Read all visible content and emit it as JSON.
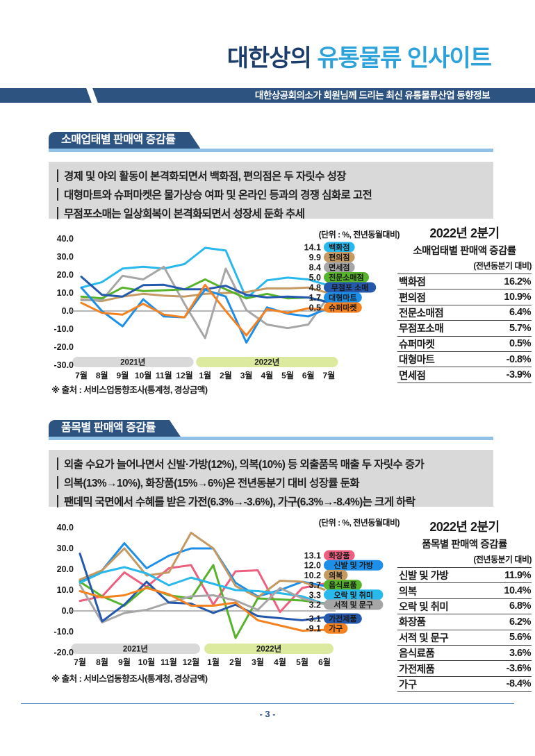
{
  "header": {
    "title_part1": "대한상의 ",
    "title_part2": "유통물류 인사이트",
    "subtitle": "대한상공회의소가 회원님께 드리는 최신 유통물류산업 동향정보"
  },
  "colors": {
    "brand_navy": "#2d5381",
    "title_navy": "#1c3c6b",
    "title_blue": "#2ba2da",
    "section_underline": "#8fc2e6",
    "summary_box_bg": "#d9d9d9",
    "band_2021": "#d9d9d9",
    "band_2022": "#dcea9f",
    "footer_blue": "#5b8ec4"
  },
  "sections": [
    {
      "tab_title": "소매업태별 판매액 증감률",
      "bullets": [
        "경제 및 야외 활동이 본격화되면서 백화점, 편의점은 두 자릿수 성장",
        "대형마트와 슈퍼마켓은 물가상승 여파 및 온라인 등과의 경쟁 심화로 고전",
        "무점포소매는 일상회복이 본격화되면서 성장세 둔화 추세"
      ],
      "unit_note": "(단위 : %, 전년동월대비)",
      "source_note": "※ 출처 : 서비스업동향조사(통계청, 경상금액)",
      "side_table": {
        "title_line1": "2022년 2분기",
        "title_line2": "소매업태별 판매액 증감률",
        "title_line3": "(전년동분기 대비)",
        "rows": [
          [
            "백화점",
            "16.2%"
          ],
          [
            "편의점",
            "10.9%"
          ],
          [
            "전문소매점",
            "6.4%"
          ],
          [
            "무점포소매",
            "5.7%"
          ],
          [
            "슈퍼마켓",
            "0.5%"
          ],
          [
            "대형마트",
            "-0.8%"
          ],
          [
            "면세점",
            "-3.9%"
          ]
        ]
      }
    },
    {
      "tab_title": "품목별 판매액 증감률",
      "bullets": [
        "외출 수요가 늘어나면서 신발·가방(12%), 의복(10%) 등 외출품목 매출 두 자릿수 증가",
        "의복(13%→10%), 화장품(15%→6%)은 전년동분기 대비 성장률 둔화",
        "팬데믹 국면에서 수혜를 받은 가전(6.3%→-3.6%), 가구(6.3%→-8.4%)는 크게 하락"
      ],
      "unit_note": "(단위 : %, 전년동월대비)",
      "source_note": "※ 출처 : 서비스업동향조사(통계청, 경상금액)",
      "side_table": {
        "title_line1": "2022년 2분기",
        "title_line2": "품목별 판매액 증감률",
        "title_line3": "(전년동분기 대비)",
        "rows": [
          [
            "신발 및 가방",
            "11.9%"
          ],
          [
            "의복",
            "10.4%"
          ],
          [
            "오락 및 취미",
            "6.8%"
          ],
          [
            "화장품",
            "6.2%"
          ],
          [
            "서적 및 문구",
            "5.6%"
          ],
          [
            "음식료품",
            "3.6%"
          ],
          [
            "가전제품",
            "-3.6%"
          ],
          [
            "가구",
            "-8.4%"
          ]
        ]
      }
    }
  ],
  "chart_data": [
    {
      "type": "line",
      "title": "소매업태별 판매액 증감률",
      "unit": "%, 전년동월대비",
      "x": [
        "7월",
        "8월",
        "9월",
        "10월",
        "11월",
        "12월",
        "1월",
        "2월",
        "3월",
        "4월",
        "5월",
        "6월",
        "7월"
      ],
      "ylim": [
        -30,
        40
      ],
      "yticks": [
        40,
        30,
        20,
        10,
        0,
        -10,
        -20,
        -30
      ],
      "grid": false,
      "legend_position": "right",
      "year_bands": [
        {
          "label": "2021년",
          "from": 0,
          "to": 5,
          "color": "#d9d9d9"
        },
        {
          "label": "2022년",
          "from": 6,
          "to": 12,
          "color": "#dcea9f"
        }
      ],
      "series": [
        {
          "name": "백화점",
          "end_label": "14.1",
          "color": "#29b8ec",
          "values": [
            13,
            16,
            23.5,
            24.5,
            23.5,
            26,
            35,
            33.5,
            7,
            17,
            18.5,
            17.5,
            14.1
          ]
        },
        {
          "name": "편의점",
          "end_label": "9.9",
          "color": "#c49a62",
          "values": [
            6.5,
            5.5,
            8,
            9.5,
            8.5,
            8,
            9.5,
            10,
            10.5,
            12.5,
            12.5,
            13,
            9.9
          ]
        },
        {
          "name": "면세점",
          "end_label": "8.4",
          "color": "#a6a6a6",
          "values": [
            6,
            6,
            19.5,
            17.5,
            24.5,
            4,
            -15,
            23.5,
            0.5,
            -7.5,
            -9.5,
            -7.5,
            8.4
          ]
        },
        {
          "name": "전문소매점",
          "end_label": "5.0",
          "color": "#56b32b",
          "values": [
            8,
            7,
            13,
            11,
            11.5,
            12,
            17.5,
            12,
            7,
            9.5,
            7,
            7.5,
            5.0
          ]
        },
        {
          "name": "무점포 소매",
          "end_label": "4.8",
          "color": "#2458ad",
          "values": [
            19,
            9,
            8,
            14.3,
            14.5,
            12,
            12,
            14,
            9,
            7.5,
            8,
            7.5,
            4.8
          ]
        },
        {
          "name": "대형마트",
          "end_label": "1.7",
          "color": "#1e8fe8",
          "values": [
            13,
            0,
            -8.5,
            6.5,
            -3,
            -3.5,
            11.8,
            8,
            -17.5,
            2,
            -1.5,
            -3,
            1.7
          ]
        },
        {
          "name": "슈퍼마켓",
          "end_label": "0.5",
          "color": "#f58220",
          "values": [
            4.5,
            -1,
            -2,
            4,
            -2,
            -3.5,
            14.5,
            0,
            -13.5,
            1,
            -1,
            1.5,
            0.5
          ]
        }
      ]
    },
    {
      "type": "line",
      "title": "품목별 판매액 증감률",
      "unit": "%, 전년동월대비",
      "x": [
        "7월",
        "8월",
        "9월",
        "10월",
        "11월",
        "12월",
        "1월",
        "2월",
        "3월",
        "4월",
        "5월",
        "6월"
      ],
      "ylim": [
        -20,
        40
      ],
      "yticks": [
        40,
        30,
        20,
        10,
        0,
        -10,
        -20
      ],
      "grid": false,
      "legend_position": "right",
      "year_bands": [
        {
          "label": "2021년",
          "from": 0,
          "to": 5,
          "color": "#d9d9d9"
        },
        {
          "label": "2022년",
          "from": 6,
          "to": 11,
          "color": "#dcea9f"
        }
      ],
      "series": [
        {
          "name": "화장품",
          "end_label": "13.1",
          "color": "#ed5f7f",
          "values": [
            4.8,
            7,
            18.5,
            11.5,
            20.5,
            22,
            3,
            19,
            19.5,
            -0.5,
            11,
            13.1
          ]
        },
        {
          "name": "신발 및 가방",
          "end_label": "12.0",
          "color": "#1e8fe8",
          "values": [
            14.5,
            19.5,
            32.5,
            20.5,
            26.5,
            30,
            30,
            13.5,
            7,
            10,
            14,
            12.0
          ]
        },
        {
          "name": "의복",
          "end_label": "10.2",
          "color": "#c49a62",
          "values": [
            15,
            19.5,
            30,
            17,
            18.5,
            37.5,
            30,
            12,
            6.5,
            14.5,
            14,
            10.2
          ]
        },
        {
          "name": "음식료품",
          "end_label": "3.7",
          "color": "#56b32b",
          "values": [
            14,
            7,
            2.5,
            11.5,
            7.5,
            6,
            22,
            -13,
            6,
            5.5,
            5,
            3.7
          ]
        },
        {
          "name": "오락 및 취미",
          "end_label": "3.3",
          "color": "#29b8ec",
          "values": [
            13.5,
            18.5,
            21,
            18,
            12.3,
            16,
            13,
            10,
            9.5,
            8.5,
            7,
            3.3
          ]
        },
        {
          "name": "서적 및 문구",
          "end_label": "3.2",
          "color": "#a6a6a6",
          "values": [
            12.5,
            -5.5,
            -1,
            0.5,
            4,
            7,
            7.5,
            5,
            0.5,
            11,
            6,
            3.2
          ]
        },
        {
          "name": "가전제품",
          "end_label": "-3.1",
          "color": "#2458ad",
          "values": [
            27.5,
            -5,
            3,
            14,
            4,
            3.5,
            -1,
            3,
            -2.5,
            -3.5,
            -4.5,
            -3.1
          ]
        },
        {
          "name": "가구",
          "end_label": "-9.1",
          "color": "#f58220",
          "values": [
            9.5,
            6.5,
            7.5,
            11,
            8,
            2.5,
            2.5,
            4,
            -4.5,
            -7,
            -9.5,
            -9.1
          ]
        }
      ]
    }
  ],
  "footer": {
    "page_number": "- 3 -"
  }
}
